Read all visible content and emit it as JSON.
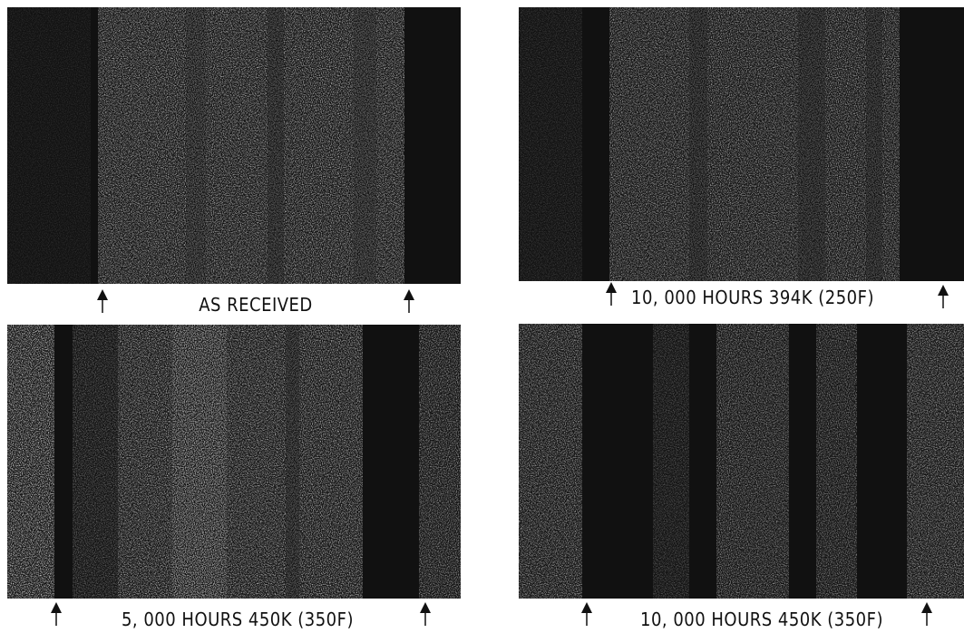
{
  "panels": [
    {
      "caption": "AS RECEIVED"
    },
    {
      "caption": "10, 000 HOURS 394K (250F)"
    },
    {
      "caption": "5, 000 HOURS 450K (350F)"
    },
    {
      "caption": "10, 000 HOURS 450K (350F)"
    }
  ]
}
